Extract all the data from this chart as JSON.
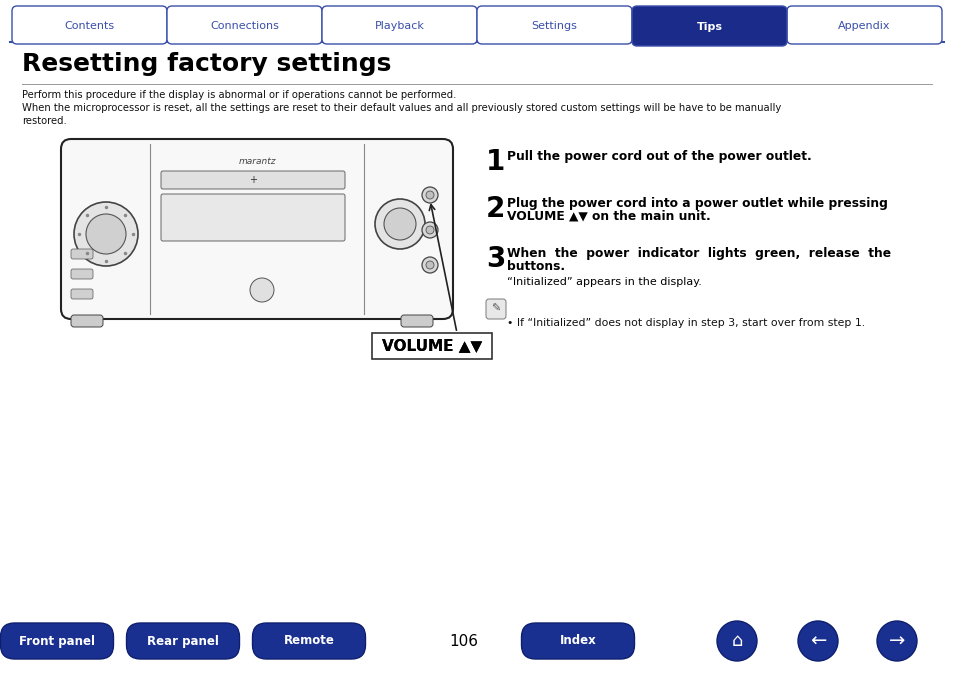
{
  "page_bg": "#ffffff",
  "tab_bg_inactive": "#ffffff",
  "tab_bg_active": "#1a2b8a",
  "tab_border": "#3a4faa",
  "tab_text_inactive": "#3a4faa",
  "tab_text_active": "#ffffff",
  "tabs": [
    "Contents",
    "Connections",
    "Playback",
    "Settings",
    "Tips",
    "Appendix"
  ],
  "active_tab": 4,
  "title": "Resetting factory settings",
  "title_color": "#000000",
  "separator_color": "#999999",
  "body_line1": "Perform this procedure if the display is abnormal or if operations cannot be performed.",
  "body_line2": "When the microprocessor is reset, all the settings are reset to their default values and all previously stored custom settings will be have to be manually",
  "body_line3": "restored.",
  "step1_bold": "Pull the power cord out of the power outlet.",
  "step2_bold_l1": "Plug the power cord into a power outlet while pressing",
  "step2_bold_l2": "VOLUME ▲▼ on the main unit.",
  "step3_bold_l1": "When  the  power  indicator  lights  green,  release  the",
  "step3_bold_l2": "buttons.",
  "step3_normal": "“Initialized” appears in the display.",
  "note_text": "• If “Initialized” does not display in step 3, start over from step 1.",
  "volume_label": "VOLUME ▲▼",
  "footer_buttons_left": [
    "Front panel",
    "Rear panel",
    "Remote"
  ],
  "footer_button_index": "Index",
  "footer_page": "106",
  "footer_btn_color": "#1a3090",
  "footer_text_color": "#ffffff",
  "icon_color": "#1a3090"
}
